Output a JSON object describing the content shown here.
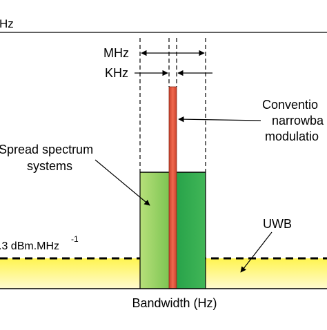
{
  "labels": {
    "top_unit": "Hz",
    "mhz": "MHz",
    "khz": "KHz",
    "conventional_line1": "Conventio",
    "conventional_line2": "narrowba",
    "conventional_line3": "modulatio",
    "spread_line1": "Spread spectrum",
    "spread_line2": "systems",
    "uwb": "UWB",
    "psd_value": ".3 dBm.MHz",
    "psd_exponent": "-1",
    "bandwidth_axis": "Bandwidth (Hz)"
  },
  "colors": {
    "uwb_fill": "#fff44f",
    "uwb_fill_edge": "#fffbd0",
    "narrowband": "#e8553d",
    "spread_light": "#a6d86a",
    "spread_dark": "#2fa84b"
  }
}
